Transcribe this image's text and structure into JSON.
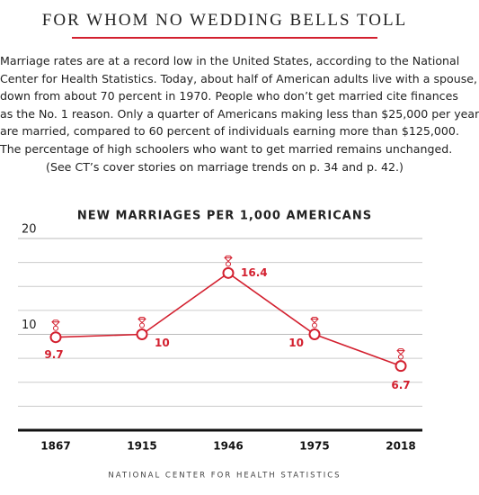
{
  "header": {
    "title": "FOR WHOM NO WEDDING BELLS TOLL"
  },
  "body": [
    "Marriage rates are at a record low in the United States, according to the National",
    "Center for Health Statistics. Today, about half of American adults live with a spouse,",
    "down from about 70 percent in 1970. People who don’t get married cite finances",
    "as the No. 1 reason. Only a quarter of Americans making less than $25,000 per year",
    "are married, compared to 60 percent of individuals earning more than $125,000.",
    "The percentage of high schoolers who want to get married remains unchanged.",
    "(See CT’s cover stories on marriage trends on p. 34 and p. 42.)"
  ],
  "chart_data": {
    "type": "line",
    "title": "NEW MARRIAGES PER 1,000 AMERICANS",
    "categories": [
      "1867",
      "1915",
      "1946",
      "1975",
      "2018"
    ],
    "values": [
      9.7,
      10,
      16.4,
      10,
      6.7
    ],
    "color": "#d3202f",
    "ylim": [
      0,
      20
    ],
    "yticks": [
      10,
      20
    ],
    "minor_yticks": [
      2.5,
      5,
      7.5,
      12.5,
      15,
      17.5
    ],
    "grid": true
  },
  "source": "NATIONAL CENTER FOR HEALTH STATISTICS"
}
